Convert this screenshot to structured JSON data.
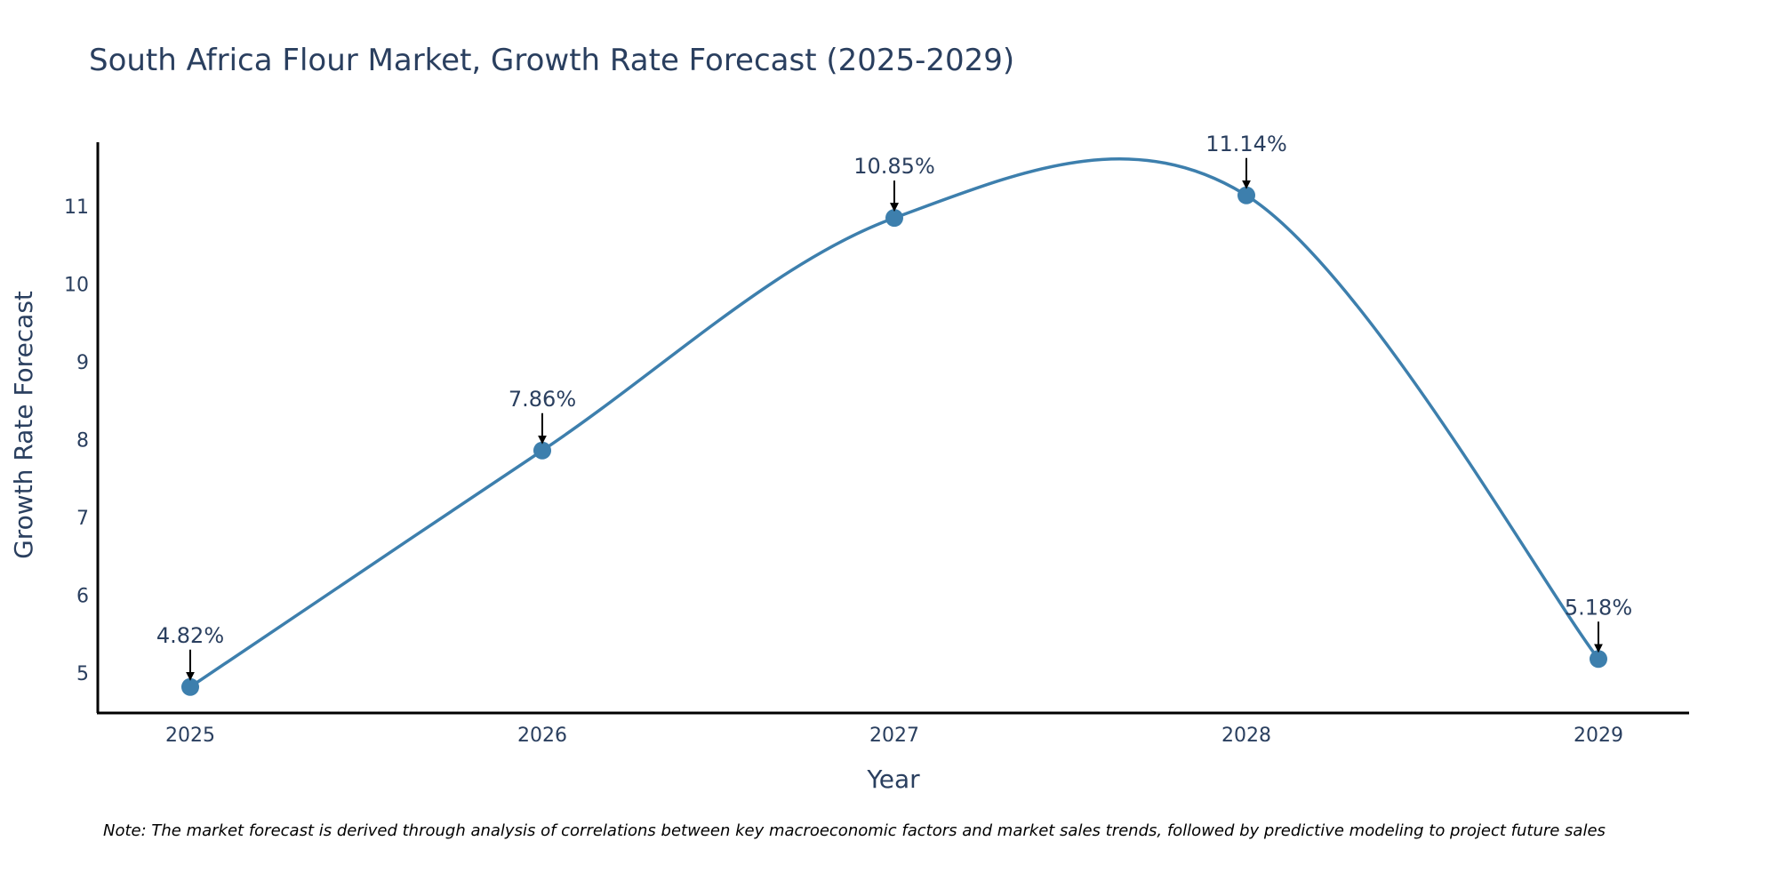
{
  "chart_data": {
    "type": "line",
    "title": "South Africa Flour Market, Growth Rate Forecast (2025-2029)",
    "xlabel": "Year",
    "ylabel": "Growth Rate Forecast",
    "categories": [
      "2025",
      "2026",
      "2027",
      "2028",
      "2029"
    ],
    "series": [
      {
        "values": [
          4.82,
          7.86,
          10.85,
          11.14,
          5.18
        ]
      }
    ],
    "data_labels": [
      "4.82%",
      "7.86%",
      "10.85%",
      "11.14%",
      "5.18%"
    ],
    "y_ticks": [
      5,
      6,
      7,
      8,
      9,
      10,
      11
    ],
    "ylim": [
      4.3,
      11.65
    ],
    "grid": false,
    "legend": "none",
    "line_shape": "spline",
    "line_color": "#3d7fad",
    "marker_color": "#3d7fad",
    "arrow_color": "#000000",
    "note": "Note: The market forecast is derived through analysis of correlations between key macroeconomic factors and market sales trends, followed by predictive modeling to project future sales"
  }
}
